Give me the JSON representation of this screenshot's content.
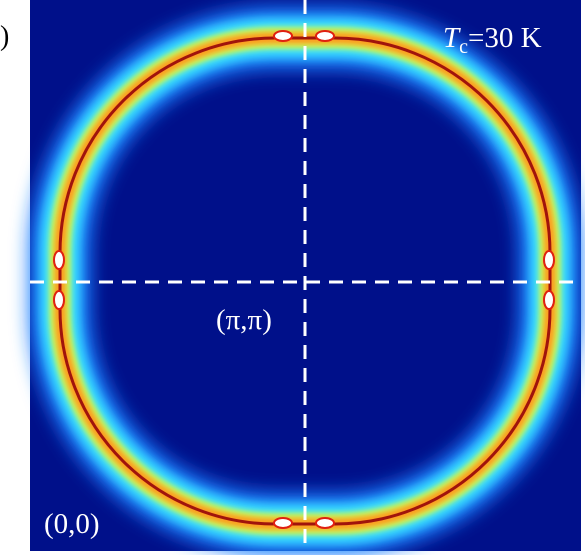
{
  "panel_label": ")",
  "annotations": {
    "temperature": {
      "symbol": "T",
      "subscript": "c",
      "rest": "=30 K"
    },
    "center": "(π,π)",
    "corner": "(0,0)"
  }
}
